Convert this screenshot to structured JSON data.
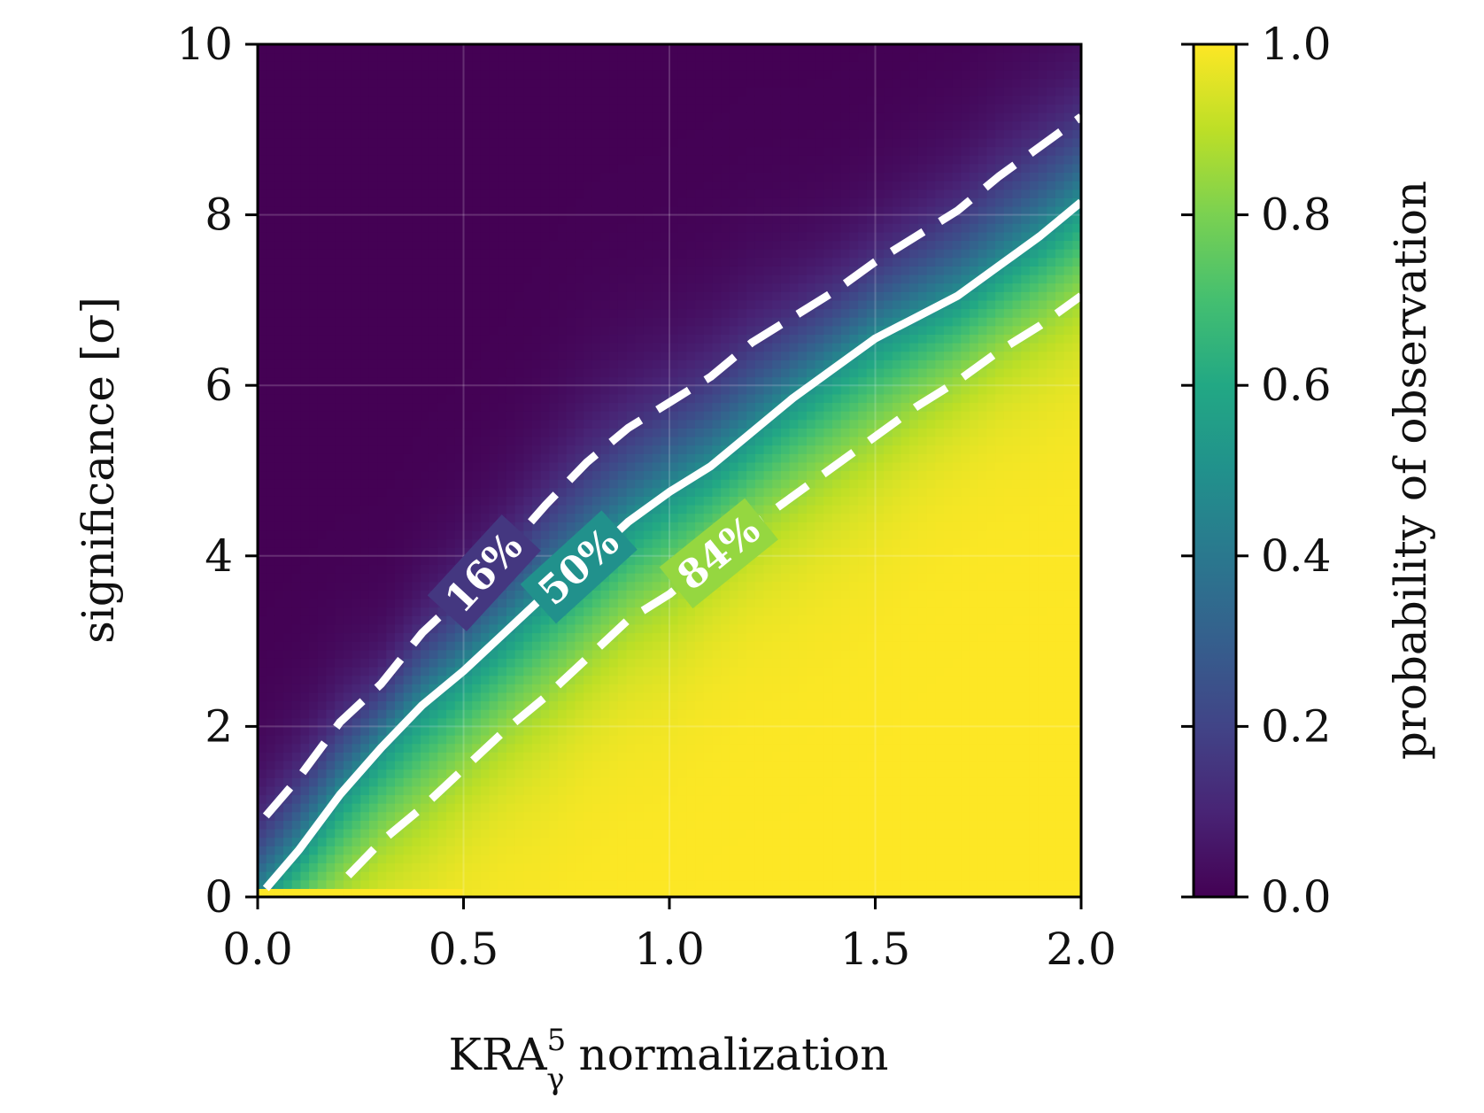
{
  "chart_data": [
    {
      "type": "heatmap",
      "title": "",
      "xlabel": "KRA",
      "xlabel_sup": "5",
      "xlabel_sub": "γ",
      "xlabel_rest": " normalization",
      "ylabel": "significance [σ]",
      "xlim": [
        0.0,
        2.0
      ],
      "ylim": [
        0,
        10
      ],
      "x_ticks": [
        "0.0",
        "0.5",
        "1.0",
        "1.5",
        "2.0"
      ],
      "y_ticks": [
        "0",
        "2",
        "4",
        "6",
        "8",
        "10"
      ],
      "grid": true,
      "colormap": "viridis",
      "value_range": [
        0.0,
        1.0
      ],
      "contours": [
        {
          "level": 0.16,
          "label": "16%",
          "style": "dashed",
          "color": "#ffffff",
          "x": [
            0.02,
            0.1,
            0.2,
            0.3,
            0.4,
            0.5,
            0.6,
            0.7,
            0.8,
            0.9,
            1.0,
            1.1,
            1.2,
            1.3,
            1.4,
            1.5,
            1.6,
            1.7,
            1.8,
            1.9,
            2.0
          ],
          "y": [
            0.95,
            1.4,
            2.05,
            2.5,
            3.1,
            3.55,
            4.05,
            4.6,
            5.1,
            5.5,
            5.8,
            6.1,
            6.5,
            6.8,
            7.1,
            7.45,
            7.75,
            8.05,
            8.45,
            8.8,
            9.15
          ]
        },
        {
          "level": 0.5,
          "label": "50%",
          "style": "solid",
          "color": "#ffffff",
          "x": [
            0.02,
            0.1,
            0.2,
            0.3,
            0.4,
            0.5,
            0.6,
            0.7,
            0.8,
            0.9,
            1.0,
            1.1,
            1.2,
            1.3,
            1.4,
            1.5,
            1.6,
            1.7,
            1.8,
            1.9,
            2.0
          ],
          "y": [
            0.1,
            0.55,
            1.2,
            1.75,
            2.25,
            2.65,
            3.1,
            3.55,
            3.95,
            4.4,
            4.75,
            5.05,
            5.45,
            5.85,
            6.2,
            6.55,
            6.8,
            7.05,
            7.4,
            7.75,
            8.15
          ]
        },
        {
          "level": 0.84,
          "label": "84%",
          "style": "dashed",
          "color": "#ffffff",
          "x": [
            0.22,
            0.3,
            0.4,
            0.5,
            0.6,
            0.7,
            0.8,
            0.9,
            1.0,
            1.1,
            1.2,
            1.3,
            1.4,
            1.5,
            1.6,
            1.7,
            1.8,
            1.9,
            2.0
          ],
          "y": [
            0.25,
            0.65,
            1.05,
            1.5,
            1.95,
            2.35,
            2.8,
            3.25,
            3.55,
            3.95,
            4.35,
            4.7,
            5.05,
            5.4,
            5.75,
            6.05,
            6.4,
            6.7,
            7.05
          ]
        }
      ]
    },
    {
      "type": "colorbar",
      "label": "probability of observation",
      "range": [
        0.0,
        1.0
      ],
      "ticks": [
        "0.0",
        "0.2",
        "0.4",
        "0.6",
        "0.8",
        "1.0"
      ],
      "colormap": "viridis"
    }
  ]
}
